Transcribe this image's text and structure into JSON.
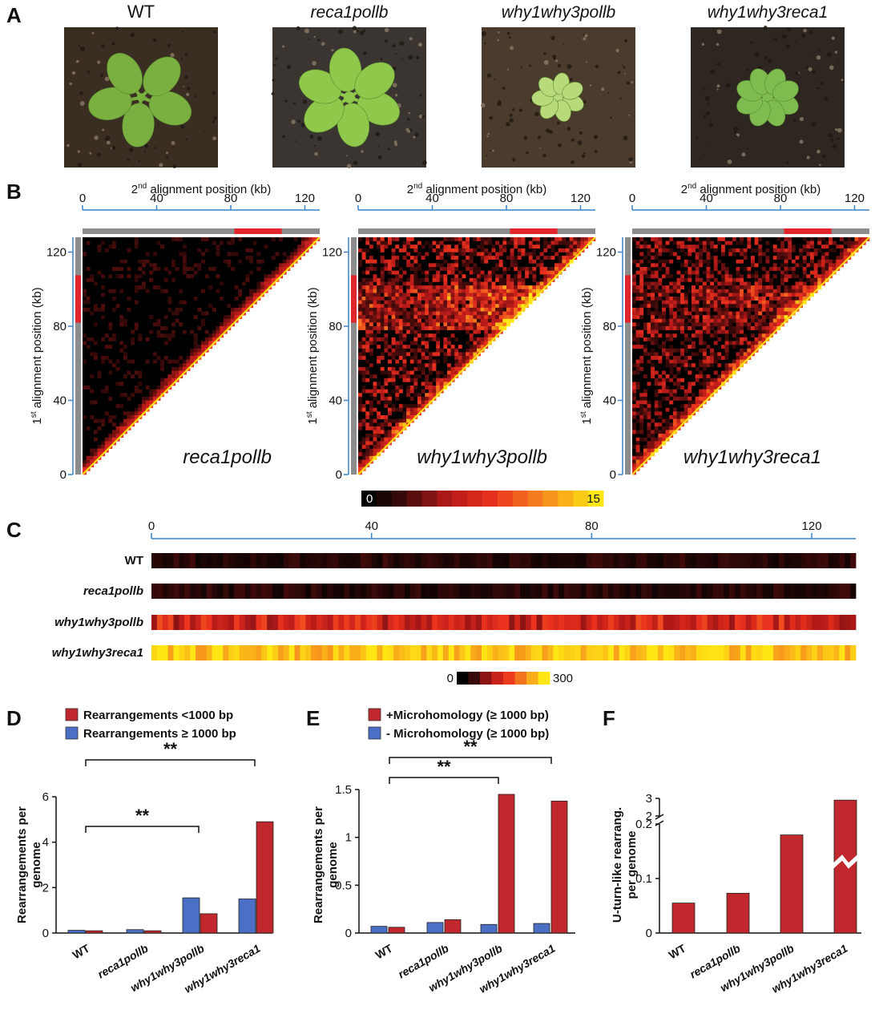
{
  "panel_labels": {
    "a": "A",
    "b": "B",
    "c": "C",
    "d": "D",
    "e": "E",
    "f": "F"
  },
  "photos": [
    {
      "label": "WT",
      "italic": false,
      "leaf_color": "#7ab040",
      "soil_color": "#3a2e22"
    },
    {
      "label": "reca1pollb",
      "italic": true,
      "leaf_color": "#8fc84a",
      "soil_color": "#3a3530"
    },
    {
      "label": "why1why3pollb",
      "italic": true,
      "leaf_color": "#b9da7a",
      "soil_color": "#4a3b2c"
    },
    {
      "label": "why1why3reca1",
      "italic": true,
      "leaf_color": "#7fbc50",
      "soil_color": "#2e2620"
    }
  ],
  "heatmap_b": {
    "x_label_pre": "2",
    "x_label_sup": "nd",
    "x_label_post": " alignment position (kb)",
    "y_label_pre": "1",
    "y_label_sup": "st",
    "y_label_post": " alignment position (kb)",
    "ticks": [
      "0",
      "40",
      "80",
      "120"
    ],
    "colorbar_min": "0",
    "colorbar_max": "15",
    "panels": [
      {
        "name": "reca1pollb",
        "intensity": 0.18,
        "hotspot": 0.0
      },
      {
        "name": "why1why3pollb",
        "intensity": 0.55,
        "hotspot": 0.9
      },
      {
        "name": "why1why3reca1",
        "intensity": 0.5,
        "hotspot": 0.45
      }
    ]
  },
  "heatmap_c": {
    "ticks": [
      "0",
      "40",
      "80",
      "120"
    ],
    "colorbar_min": "0",
    "colorbar_max": "300",
    "rows": [
      {
        "label": "WT",
        "italic": false,
        "level": 0.12
      },
      {
        "label": "reca1pollb",
        "italic": true,
        "level": 0.1
      },
      {
        "label": "why1why3pollb",
        "italic": true,
        "level": 0.45
      },
      {
        "label": "why1why3reca1",
        "italic": true,
        "level": 0.92
      }
    ]
  },
  "chart_data": [
    {
      "type": "bar",
      "panel": "D",
      "categories": [
        "WT",
        "reca1pollb",
        "why1why3pollb",
        "why1why3reca1"
      ],
      "series": [
        {
          "name": "Rearrangements ≥ 1000 bp",
          "color": "#4a6fc4",
          "values": [
            0.12,
            0.15,
            1.55,
            1.5
          ]
        },
        {
          "name": "Rearrangements <1000 bp",
          "color": "#c0282d",
          "values": [
            0.1,
            0.1,
            0.85,
            4.9
          ]
        }
      ],
      "legend": [
        "Rearrangements <1000 bp",
        "Rearrangements ≥ 1000 bp"
      ],
      "ylabel": "Rearrangements per genome",
      "ylabel_lines": [
        "Rearrangements per",
        "genome"
      ],
      "ylim": [
        0,
        6
      ],
      "yticks": [
        "0",
        "2",
        "4",
        "6"
      ],
      "annotations": [
        "**",
        "**"
      ]
    },
    {
      "type": "bar",
      "panel": "E",
      "categories": [
        "WT",
        "reca1pollb",
        "why1why3pollb",
        "why1why3reca1"
      ],
      "series": [
        {
          "name": "- Microhomology (≥ 1000 bp)",
          "color": "#4a6fc4",
          "values": [
            0.07,
            0.11,
            0.09,
            0.1
          ]
        },
        {
          "name": "+Microhomology (≥ 1000 bp)",
          "color": "#c0282d",
          "values": [
            0.06,
            0.14,
            1.45,
            1.38
          ]
        }
      ],
      "legend": [
        "+Microhomology (≥ 1000 bp)",
        "- Microhomology (≥ 1000 bp)"
      ],
      "ylabel": "Rearrangements per genome",
      "ylabel_lines": [
        "Rearrangements per",
        "genome"
      ],
      "ylim": [
        0,
        1.5
      ],
      "yticks": [
        "0",
        "0.5",
        "1",
        "1.5"
      ],
      "annotations": [
        "**",
        "**"
      ]
    },
    {
      "type": "bar",
      "panel": "F",
      "categories": [
        "WT",
        "reca1pollb",
        "why1why3pollb",
        "why1why3reca1"
      ],
      "series": [
        {
          "name": "U-turn-like rearrang. per genome",
          "color": "#c0282d",
          "values": [
            0.055,
            0.073,
            0.18,
            2.9
          ]
        }
      ],
      "ylabel": "U-turn-like rearrang. per genome",
      "ylabel_lines": [
        "U-turn-like rearrang.",
        "per genome"
      ],
      "broken_axis": {
        "lower": [
          0,
          0.2
        ],
        "upper": [
          2,
          3
        ]
      },
      "yticks_lower": [
        "0",
        "0.1",
        "0.2"
      ],
      "yticks_upper": [
        "2",
        "3"
      ]
    }
  ]
}
